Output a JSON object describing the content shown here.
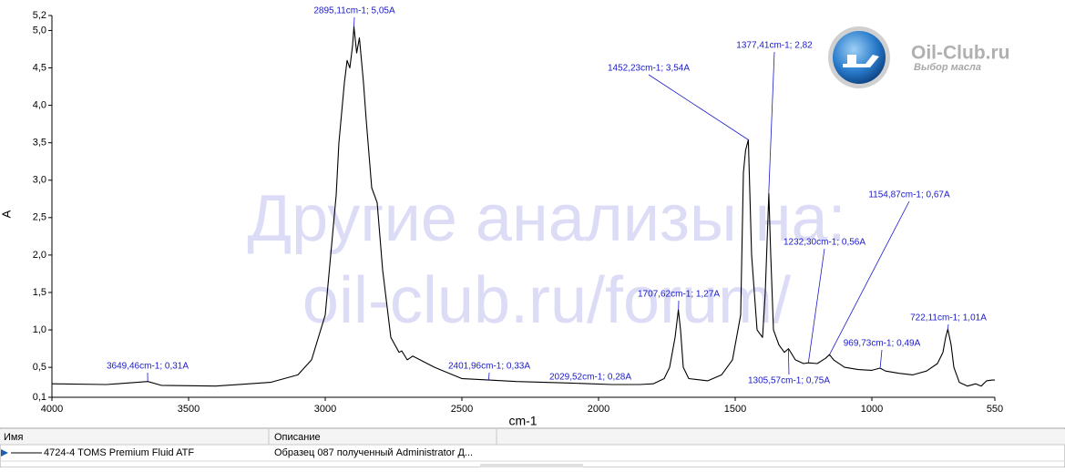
{
  "chart_data": {
    "type": "line",
    "ylabel": "A",
    "xlabel": "cm-1",
    "xlim": [
      4000,
      550
    ],
    "ylim": [
      0.1,
      5.2
    ],
    "xticks": [
      4000,
      3500,
      3000,
      2500,
      2000,
      1500,
      1000,
      550
    ],
    "yticks": [
      {
        "value": 5.2,
        "label": "5,2"
      },
      {
        "value": 5.0,
        "label": "5,0"
      },
      {
        "value": 4.5,
        "label": "4,5"
      },
      {
        "value": 4.0,
        "label": "4,0"
      },
      {
        "value": 3.5,
        "label": "3,5"
      },
      {
        "value": 3.0,
        "label": "3,0"
      },
      {
        "value": 2.5,
        "label": "2,5"
      },
      {
        "value": 2.0,
        "label": "2,0"
      },
      {
        "value": 1.5,
        "label": "1,5"
      },
      {
        "value": 1.0,
        "label": "1,0"
      },
      {
        "value": 0.5,
        "label": "0,5"
      },
      {
        "value": 0.1,
        "label": "0,1"
      }
    ],
    "grid": false,
    "x": [
      4000,
      3800,
      3649,
      3600,
      3400,
      3200,
      3100,
      3050,
      3000,
      2980,
      2960,
      2950,
      2930,
      2920,
      2910,
      2900,
      2895,
      2885,
      2875,
      2860,
      2850,
      2830,
      2810,
      2790,
      2760,
      2730,
      2720,
      2700,
      2680,
      2600,
      2500,
      2400,
      2300,
      2200,
      2100,
      2029,
      1950,
      1850,
      1800,
      1760,
      1740,
      1720,
      1708,
      1700,
      1690,
      1670,
      1600,
      1550,
      1510,
      1480,
      1470,
      1462,
      1452,
      1440,
      1420,
      1400,
      1390,
      1377,
      1370,
      1360,
      1340,
      1320,
      1305,
      1280,
      1250,
      1232,
      1200,
      1170,
      1155,
      1140,
      1100,
      1050,
      1000,
      970,
      950,
      900,
      850,
      800,
      760,
      740,
      730,
      722,
      710,
      700,
      680,
      650,
      620,
      600,
      580,
      560,
      550
    ],
    "series": [
      {
        "color": "#000000",
        "values": [
          0.28,
          0.27,
          0.31,
          0.26,
          0.25,
          0.3,
          0.4,
          0.6,
          1.2,
          2.0,
          2.8,
          3.5,
          4.3,
          4.6,
          4.5,
          4.8,
          5.05,
          4.7,
          4.9,
          4.3,
          3.8,
          2.9,
          2.7,
          1.8,
          0.9,
          0.7,
          0.72,
          0.6,
          0.65,
          0.5,
          0.35,
          0.33,
          0.31,
          0.3,
          0.29,
          0.28,
          0.27,
          0.27,
          0.28,
          0.35,
          0.5,
          0.9,
          1.27,
          1.0,
          0.5,
          0.35,
          0.32,
          0.4,
          0.6,
          1.2,
          3.1,
          3.4,
          3.54,
          2.0,
          1.0,
          0.9,
          1.5,
          2.82,
          2.0,
          1.0,
          0.8,
          0.7,
          0.75,
          0.6,
          0.55,
          0.56,
          0.55,
          0.62,
          0.67,
          0.6,
          0.5,
          0.47,
          0.46,
          0.49,
          0.45,
          0.42,
          0.4,
          0.45,
          0.55,
          0.7,
          0.9,
          1.01,
          0.8,
          0.5,
          0.3,
          0.25,
          0.28,
          0.25,
          0.32,
          0.33,
          0.33
        ]
      }
    ],
    "annotations": [
      {
        "label": "3649,46cm-1; 0,31A",
        "x": 3649.46,
        "y": 0.31
      },
      {
        "label": "2895,11cm-1; 5,05A",
        "x": 2895.11,
        "y": 5.05
      },
      {
        "label": "2401,96cm-1; 0,33A",
        "x": 2401.96,
        "y": 0.33
      },
      {
        "label": "2029,52cm-1; 0,28A",
        "x": 2029.52,
        "y": 0.28
      },
      {
        "label": "1707,62cm-1; 1,27A",
        "x": 1707.62,
        "y": 1.27
      },
      {
        "label": "1452,23cm-1; 3,54A",
        "x": 1452.23,
        "y": 3.54
      },
      {
        "label": "1377,41cm-1; 2,82",
        "x": 1377.41,
        "y": 2.82
      },
      {
        "label": "1305,57cm-1; 0,75A",
        "x": 1305.57,
        "y": 0.75
      },
      {
        "label": "1232,30cm-1; 0,56A",
        "x": 1232.3,
        "y": 0.56
      },
      {
        "label": "1154,87cm-1; 0,67A",
        "x": 1154.87,
        "y": 0.67
      },
      {
        "label": "969,73cm-1; 0,49A",
        "x": 969.73,
        "y": 0.49
      },
      {
        "label": "722,11cm-1; 1,01A",
        "x": 722.11,
        "y": 1.01
      }
    ]
  },
  "watermark": [
    "Другие анализы на:",
    "oil-club.ru/forum/"
  ],
  "logo": {
    "title": "Oil-Club.ru",
    "subtitle": "Выбор масла"
  },
  "table": {
    "headers": [
      "Имя",
      "Описание"
    ],
    "rows": [
      [
        "4724-4 TOMS Premium Fluid ATF",
        "Образец 087 полученный Administrator Д..."
      ]
    ]
  }
}
